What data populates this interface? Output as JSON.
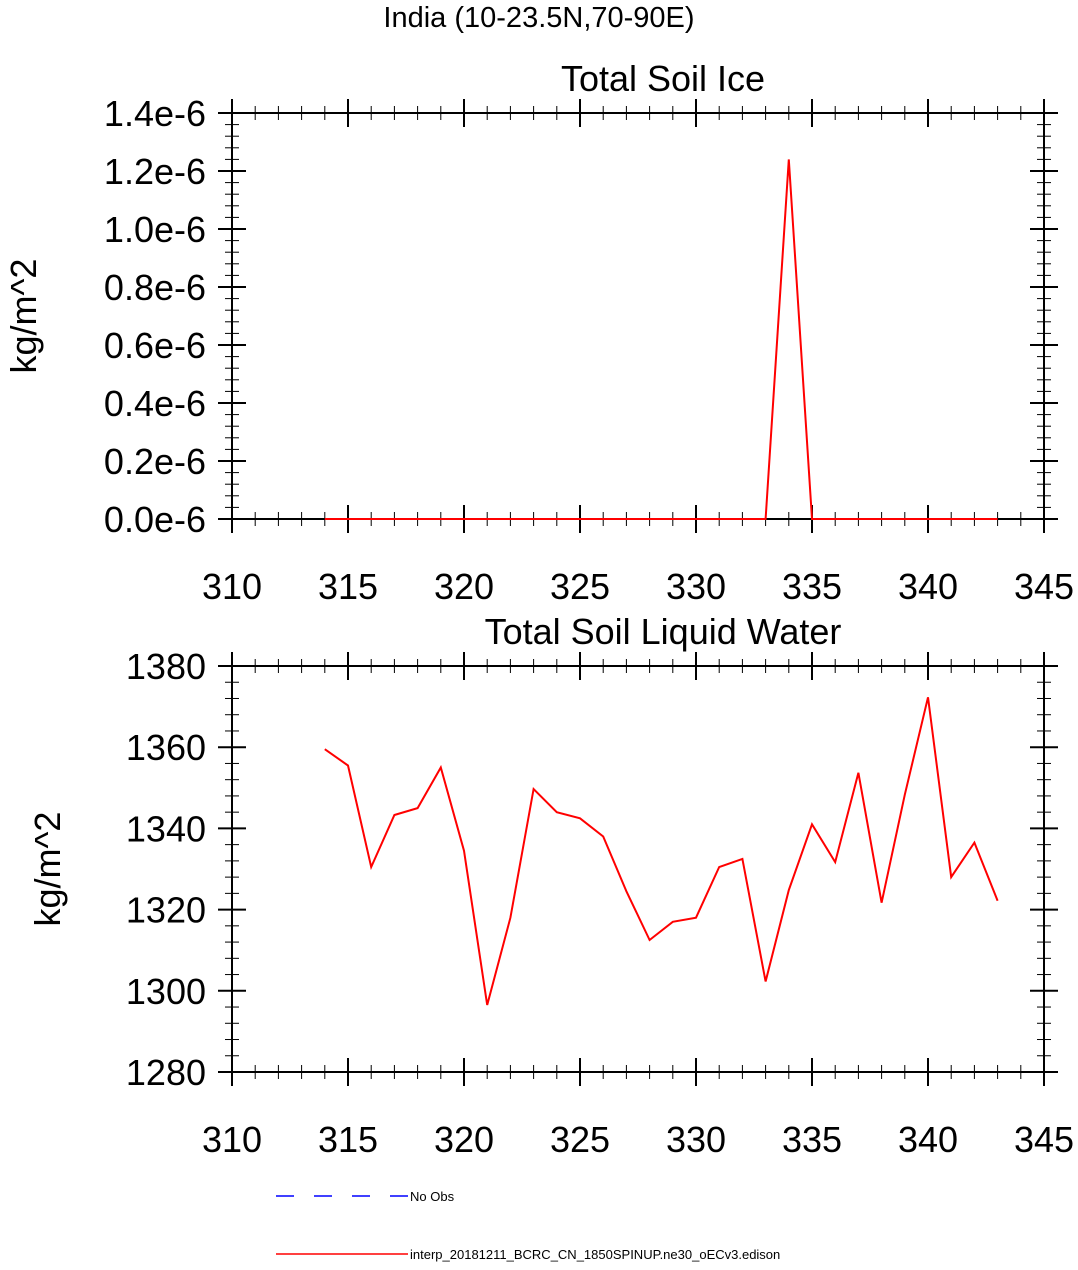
{
  "page_title": "India (10-23.5N,70-90E)",
  "chart_data": [
    {
      "type": "line",
      "title": "Total Soil Ice",
      "xlabel": "",
      "ylabel": "kg/m^2",
      "xlim": [
        310,
        345
      ],
      "ylim": [
        0,
        1.4e-06
      ],
      "x_ticks": [
        "310",
        "315",
        "320",
        "325",
        "330",
        "335",
        "340",
        "345"
      ],
      "y_ticks": [
        "0.0e-6",
        "0.2e-6",
        "0.4e-6",
        "0.6e-6",
        "0.8e-6",
        "1.0e-6",
        "1.2e-6",
        "1.4e-6"
      ],
      "grid": false,
      "series": [
        {
          "name": "interp_20181211_BCRC_CN_1850SPINUP.ne30_oECv3.edison",
          "color": "#ff0000",
          "x": [
            314,
            315,
            316,
            317,
            318,
            319,
            320,
            321,
            322,
            323,
            324,
            325,
            326,
            327,
            328,
            329,
            330,
            331,
            332,
            333,
            334,
            335,
            336,
            337,
            338,
            339,
            340,
            341,
            342,
            343
          ],
          "y": [
            0,
            0,
            0,
            0,
            0,
            0,
            0,
            0,
            0,
            0,
            0,
            0,
            0,
            0,
            0,
            0,
            0,
            0,
            0,
            0,
            1.24e-06,
            0,
            0,
            0,
            0,
            0,
            0,
            0,
            0,
            0
          ]
        }
      ]
    },
    {
      "type": "line",
      "title": "Total Soil Liquid Water",
      "xlabel": "",
      "ylabel": "kg/m^2",
      "xlim": [
        310,
        345
      ],
      "ylim": [
        1280,
        1380
      ],
      "x_ticks": [
        "310",
        "315",
        "320",
        "325",
        "330",
        "335",
        "340",
        "345"
      ],
      "y_ticks": [
        "1280",
        "1300",
        "1320",
        "1340",
        "1360",
        "1380"
      ],
      "grid": false,
      "series": [
        {
          "name": "interp_20181211_BCRC_CN_1850SPINUP.ne30_oECv3.edison",
          "color": "#ff0000",
          "x": [
            314,
            315,
            316,
            317,
            318,
            319,
            320,
            321,
            322,
            323,
            324,
            325,
            326,
            327,
            328,
            329,
            330,
            331,
            332,
            333,
            334,
            335,
            336,
            337,
            338,
            339,
            340,
            341,
            342,
            343
          ],
          "y": [
            1359.5,
            1355.5,
            1330.5,
            1343.3,
            1345,
            1355,
            1334.5,
            1296.5,
            1318,
            1349.7,
            1344,
            1342.5,
            1338,
            1324.5,
            1312.5,
            1317,
            1318,
            1330.5,
            1332.5,
            1302.3,
            1324.8,
            1341,
            1331.7,
            1353.7,
            1321.7,
            1348.3,
            1372.3,
            1328,
            1336.5,
            1322.2
          ]
        }
      ]
    }
  ],
  "legend": {
    "placement": "bottom",
    "items": [
      {
        "label": "No Obs",
        "color": "#0000ff",
        "style": "dashed"
      },
      {
        "label": "interp_20181211_BCRC_CN_1850SPINUP.ne30_oECv3.edison",
        "color": "#ff0000",
        "style": "solid"
      }
    ]
  }
}
